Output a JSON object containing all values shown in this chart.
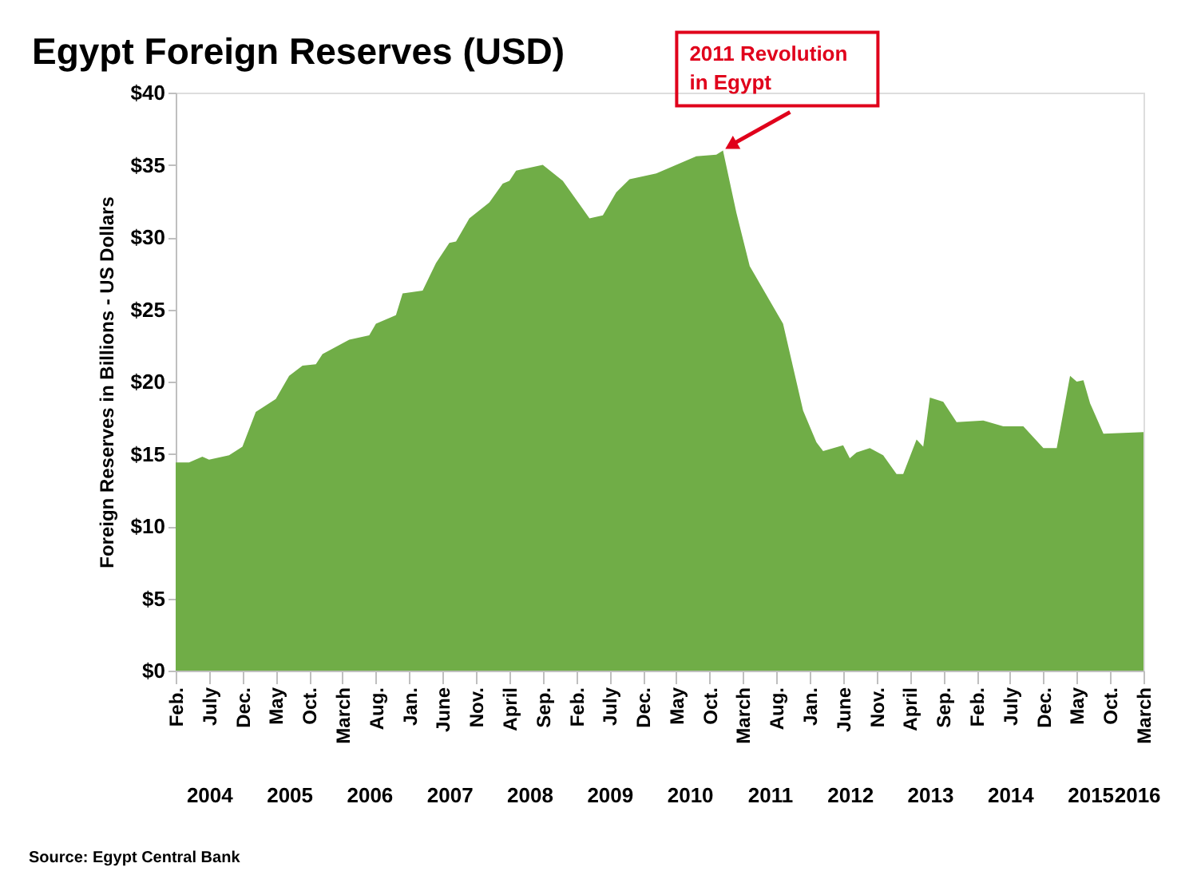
{
  "chart_data": {
    "type": "area",
    "title": "Egypt Foreign Reserves (USD)",
    "ylabel": "Foreign Reserves in Billions - US Dollars",
    "x": [
      "2004-02",
      "2004-04",
      "2004-06",
      "2004-07",
      "2004-10",
      "2004-12",
      "2005-02",
      "2005-05",
      "2005-07",
      "2005-09",
      "2005-11",
      "2005-12",
      "2006-04",
      "2006-07",
      "2006-08",
      "2006-11",
      "2006-12",
      "2007-03",
      "2007-05",
      "2007-07",
      "2007-08",
      "2007-10",
      "2008-01",
      "2008-03",
      "2008-04",
      "2008-05",
      "2008-09",
      "2008-12",
      "2009-02",
      "2009-04",
      "2009-06",
      "2009-08",
      "2009-10",
      "2010-02",
      "2010-05",
      "2010-08",
      "2010-11",
      "2010-12",
      "2011-02",
      "2011-04",
      "2011-09",
      "2011-12",
      "2012-02",
      "2012-03",
      "2012-06",
      "2012-07",
      "2012-08",
      "2012-10",
      "2012-12",
      "2013-02",
      "2013-03",
      "2013-05",
      "2013-06",
      "2013-07",
      "2013-09",
      "2013-11",
      "2014-03",
      "2014-06",
      "2014-09",
      "2014-12",
      "2015-02",
      "2015-04",
      "2015-05",
      "2015-06",
      "2015-07",
      "2015-09",
      "2016-03"
    ],
    "series": [
      {
        "color": "#70ad47",
        "values": [
          14.4,
          14.4,
          14.8,
          14.6,
          14.9,
          15.5,
          17.9,
          18.8,
          20.4,
          21.1,
          21.2,
          21.9,
          22.9,
          23.2,
          24.0,
          24.6,
          26.1,
          26.3,
          28.2,
          29.6,
          29.7,
          31.3,
          32.4,
          33.7,
          33.9,
          34.6,
          35.0,
          33.9,
          32.6,
          31.3,
          31.5,
          33.1,
          34.0,
          34.4,
          35.0,
          35.6,
          35.7,
          36.0,
          31.7,
          28.0,
          24.0,
          18.0,
          15.8,
          15.2,
          15.6,
          14.7,
          15.1,
          15.4,
          14.9,
          13.6,
          13.6,
          16.0,
          15.5,
          18.9,
          18.6,
          17.2,
          17.3,
          16.9,
          16.9,
          15.4,
          15.4,
          20.4,
          20.0,
          20.1,
          18.5,
          16.4,
          16.5
        ]
      }
    ],
    "xlim": [
      "2004-02",
      "2016-03"
    ],
    "xticks": [
      {
        "value": "2004-02",
        "label": "Feb."
      },
      {
        "value": "2004-07",
        "label": "July"
      },
      {
        "value": "2004-12",
        "label": "Dec."
      },
      {
        "value": "2005-05",
        "label": "May"
      },
      {
        "value": "2005-10",
        "label": "Oct."
      },
      {
        "value": "2006-03",
        "label": "March"
      },
      {
        "value": "2006-08",
        "label": "Aug."
      },
      {
        "value": "2007-01",
        "label": "Jan."
      },
      {
        "value": "2007-06",
        "label": "June"
      },
      {
        "value": "2007-11",
        "label": "Nov."
      },
      {
        "value": "2008-04",
        "label": "April"
      },
      {
        "value": "2008-09",
        "label": "Sep."
      },
      {
        "value": "2009-02",
        "label": "Feb."
      },
      {
        "value": "2009-07",
        "label": "July"
      },
      {
        "value": "2009-12",
        "label": "Dec."
      },
      {
        "value": "2010-05",
        "label": "May"
      },
      {
        "value": "2010-10",
        "label": "Oct."
      },
      {
        "value": "2011-03",
        "label": "March"
      },
      {
        "value": "2011-08",
        "label": "Aug."
      },
      {
        "value": "2012-01",
        "label": "Jan."
      },
      {
        "value": "2012-06",
        "label": "June"
      },
      {
        "value": "2012-11",
        "label": "Nov."
      },
      {
        "value": "2013-04",
        "label": "April"
      },
      {
        "value": "2013-09",
        "label": "Sep."
      },
      {
        "value": "2014-02",
        "label": "Feb."
      },
      {
        "value": "2014-07",
        "label": "July"
      },
      {
        "value": "2014-12",
        "label": "Dec."
      },
      {
        "value": "2015-05",
        "label": "May"
      },
      {
        "value": "2015-10",
        "label": "Oct."
      },
      {
        "value": "2016-03",
        "label": "March"
      }
    ],
    "x2lim": [
      "2004-02",
      "2016-03"
    ],
    "x2ticks": [
      {
        "value": "2004-07",
        "label": "2004"
      },
      {
        "value": "2005-07",
        "label": "2005"
      },
      {
        "value": "2006-07",
        "label": "2006"
      },
      {
        "value": "2007-07",
        "label": "2007"
      },
      {
        "value": "2008-07",
        "label": "2008"
      },
      {
        "value": "2009-07",
        "label": "2009"
      },
      {
        "value": "2010-07",
        "label": "2010"
      },
      {
        "value": "2011-07",
        "label": "2011"
      },
      {
        "value": "2012-07",
        "label": "2012"
      },
      {
        "value": "2013-07",
        "label": "2013"
      },
      {
        "value": "2014-07",
        "label": "2014"
      },
      {
        "value": "2015-07",
        "label": "2015"
      },
      {
        "value": "2016-02",
        "label": "2016"
      }
    ],
    "ylim": [
      0,
      40
    ],
    "yticks": [
      {
        "value": 0,
        "label": "$0"
      },
      {
        "value": 5,
        "label": "$5"
      },
      {
        "value": 10,
        "label": "$10"
      },
      {
        "value": 15,
        "label": "$15"
      },
      {
        "value": 20,
        "label": "$20"
      },
      {
        "value": 25,
        "label": "$25"
      },
      {
        "value": 30,
        "label": "$30"
      },
      {
        "value": 35,
        "label": "$35"
      },
      {
        "value": 40,
        "label": "$40"
      }
    ],
    "annotations": [
      {
        "text": "2011 Revolution\nin Egypt",
        "x": "2010-12",
        "y": 36
      },
      "Source: Egypt Central Bank"
    ],
    "grid": false
  }
}
